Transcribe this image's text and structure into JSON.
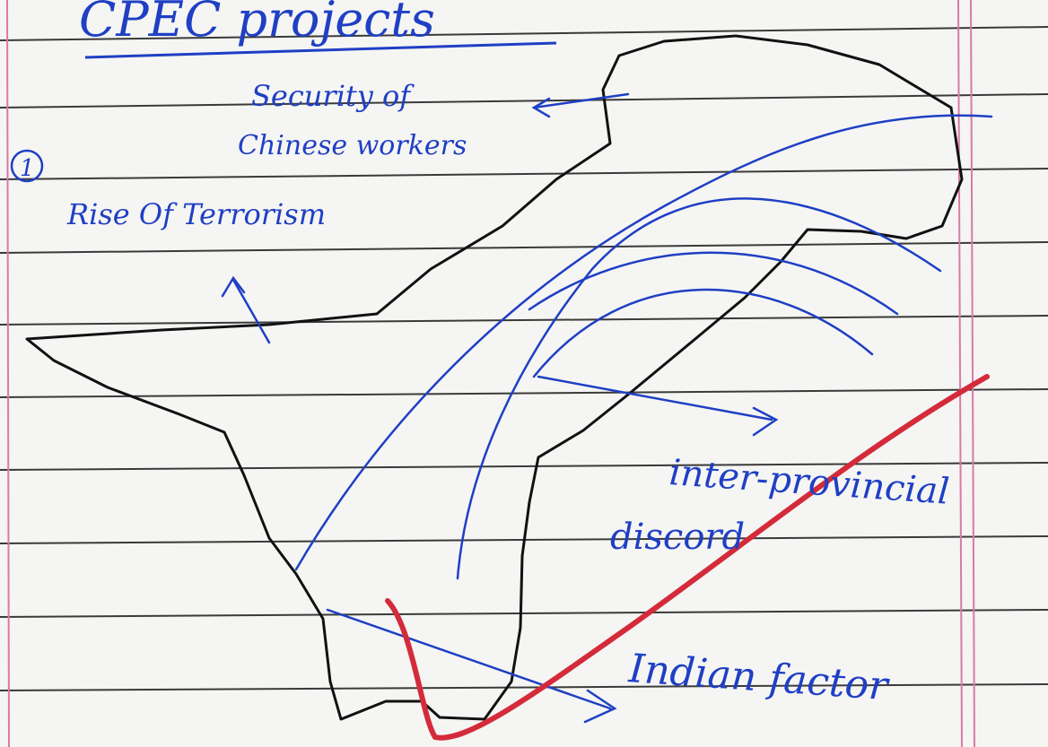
{
  "title": "CPEC projects",
  "item_number": "1",
  "notes": [
    "Security of",
    "Chinese workers",
    "Rise Of Terrorism",
    "inter-provincial",
    "discord",
    "Indian factor"
  ]
}
